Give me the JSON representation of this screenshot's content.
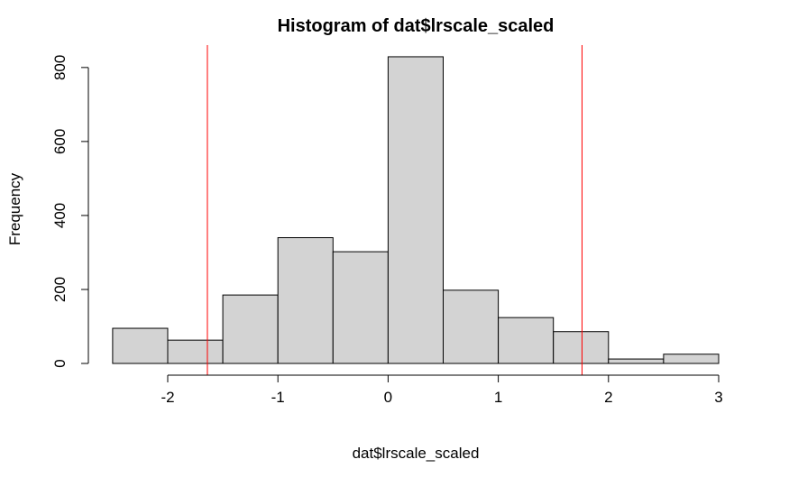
{
  "chart_data": {
    "type": "histogram",
    "title": "Histogram of dat$lrscale_scaled",
    "xlabel": "dat$lrscale_scaled",
    "ylabel": "Frequency",
    "xlim": [
      -2.5,
      3
    ],
    "ylim": [
      0,
      860
    ],
    "x_ticks": [
      -2,
      -1,
      0,
      1,
      2,
      3
    ],
    "x_tick_labels": [
      "-2",
      "-1",
      "0",
      "1",
      "2",
      "3"
    ],
    "y_ticks": [
      0,
      200,
      400,
      600,
      800
    ],
    "y_tick_labels": [
      "0",
      "200",
      "400",
      "600",
      "800"
    ],
    "bin_edges": [
      -2.5,
      -2.0,
      -1.5,
      -1.0,
      -0.5,
      0.0,
      0.5,
      1.0,
      1.5,
      2.0,
      2.5,
      3.0
    ],
    "counts": [
      95,
      63,
      185,
      340,
      302,
      829,
      198,
      124,
      86,
      12,
      25
    ],
    "bar_fill": "#d3d3d3",
    "bar_stroke": "#000000",
    "vlines": [
      -1.64,
      1.76
    ],
    "vline_color": "#ff0000",
    "grid": false
  }
}
